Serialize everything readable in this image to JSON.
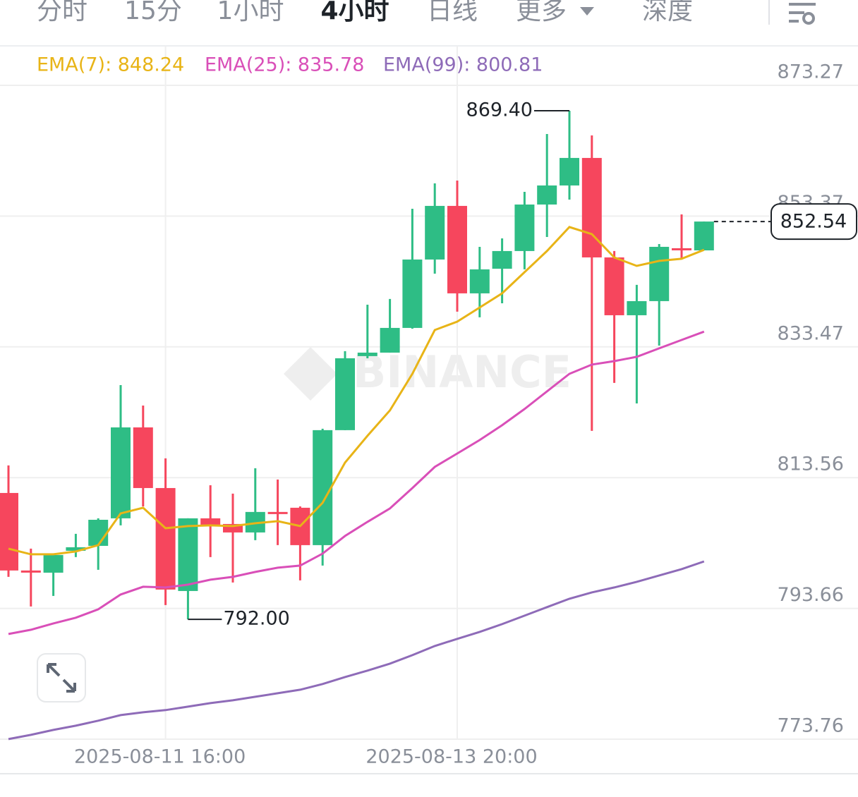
{
  "tabs": {
    "items": [
      "分时",
      "15分",
      "1小时",
      "4小时",
      "日线",
      "更多"
    ],
    "active": 3,
    "depth": "深度"
  },
  "chart_data": {
    "type": "candlestick",
    "watermark": "BINANCE",
    "categories": [
      null,
      null,
      null,
      null,
      null,
      null,
      null,
      "2025-08-11 16:00",
      null,
      null,
      null,
      null,
      null,
      null,
      null,
      null,
      null,
      null,
      null,
      null,
      "2025-08-13 20:00",
      null,
      null,
      null,
      null,
      null,
      null,
      null,
      null,
      null,
      null,
      null
    ],
    "open": [
      811.23,
      799.43,
      799.1,
      802.43,
      803.18,
      807.37,
      821.21,
      811.98,
      796.31,
      807.37,
      806.51,
      805.22,
      808.34,
      808.98,
      803.29,
      820.79,
      832.06,
      832.59,
      836.35,
      846.76,
      854.92,
      841.61,
      845.36,
      848.05,
      855.13,
      858.03,
      862.22,
      847.08,
      838.28,
      840.43,
      848.48,
      848.15
    ],
    "high": [
      815.42,
      802.75,
      802.0,
      805.01,
      807.37,
      827.65,
      824.54,
      816.49,
      807.37,
      812.41,
      811.13,
      814.99,
      813.27,
      809.19,
      821.0,
      832.81,
      839.89,
      840.75,
      854.49,
      858.35,
      858.78,
      848.69,
      849.98,
      857.06,
      865.86,
      869.4,
      865.65,
      848.05,
      842.9,
      849.12,
      853.63,
      852.54
    ],
    "low": [
      798.46,
      793.95,
      795.56,
      801.47,
      799.53,
      806.3,
      809.19,
      794.17,
      792.0,
      801.47,
      797.6,
      804.04,
      803.29,
      797.92,
      800.18,
      820.79,
      831.73,
      832.59,
      836.24,
      844.61,
      838.82,
      837.96,
      840.1,
      845.26,
      850.19,
      855.88,
      820.68,
      827.98,
      824.86,
      833.66,
      846.76,
      848.15
    ],
    "close": [
      799.43,
      799.21,
      801.79,
      802.97,
      807.15,
      821.21,
      811.98,
      796.53,
      807.37,
      806.4,
      805.22,
      808.34,
      808.12,
      803.29,
      820.79,
      831.73,
      832.59,
      836.35,
      846.76,
      854.92,
      841.61,
      845.26,
      848.05,
      855.13,
      858.03,
      862.22,
      847.08,
      838.28,
      840.43,
      848.69,
      848.26,
      852.54
    ],
    "up_color": "#2ebd85",
    "down_color": "#f6465d",
    "series": [
      {
        "name": "EMA(7): 848.24",
        "color": "#e8b417",
        "values": [
          802.75,
          801.9,
          801.9,
          802.32,
          803.29,
          808.12,
          808.98,
          805.87,
          806.19,
          806.3,
          806.19,
          806.62,
          806.94,
          806.19,
          809.73,
          815.85,
          819.93,
          823.79,
          829.37,
          836.03,
          837.31,
          839.46,
          841.61,
          844.83,
          848.05,
          851.7,
          850.62,
          847.08,
          845.79,
          846.55,
          846.87,
          848.24
        ]
      },
      {
        "name": "EMA(25): 835.78",
        "color": "#d94fb8",
        "values": [
          789.77,
          790.41,
          791.38,
          792.24,
          793.52,
          795.78,
          796.96,
          796.85,
          797.28,
          798.03,
          798.46,
          799.21,
          799.86,
          800.18,
          802.0,
          804.69,
          806.83,
          808.87,
          811.98,
          815.2,
          817.24,
          819.28,
          821.54,
          824.01,
          826.69,
          829.37,
          830.77,
          831.3,
          831.95,
          833.24,
          834.52,
          835.78
        ]
      },
      {
        "name": "EMA(99): 800.81",
        "color": "#8e6bb8",
        "values": [
          773.77,
          774.42,
          775.17,
          775.81,
          776.57,
          777.42,
          777.85,
          778.18,
          778.71,
          779.25,
          779.68,
          780.21,
          780.75,
          781.29,
          782.15,
          783.22,
          784.19,
          785.26,
          786.55,
          787.94,
          789.02,
          790.09,
          791.27,
          792.56,
          793.85,
          795.13,
          796.1,
          796.85,
          797.71,
          798.68,
          799.64,
          800.81
        ]
      }
    ],
    "annotations": [
      {
        "value": 869.4,
        "label": "869.40"
      },
      {
        "value": 792.0,
        "label": "792.00"
      },
      {
        "value": 852.54,
        "label": "852.54"
      }
    ],
    "ylim": [
      773.76,
      879.28
    ],
    "yticks": [
      873.27,
      853.37,
      833.47,
      813.56,
      793.66,
      773.76
    ],
    "grid": true
  }
}
